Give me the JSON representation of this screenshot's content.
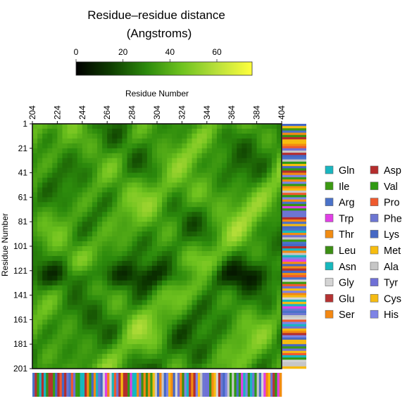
{
  "chart_data": {
    "type": "heatmap",
    "title_line1": "Residue–residue distance",
    "title_line2": "(Angstroms)",
    "colorbar": {
      "ticks": [
        "0",
        "20",
        "40",
        "60"
      ],
      "range": [
        0,
        75
      ],
      "colors": [
        "#000000",
        "#0e3d00",
        "#2c8a0c",
        "#6ec21e",
        "#b9e03a",
        "#ffff3c"
      ]
    },
    "xlabel": "Residue Number",
    "ylabel": "Residue Number",
    "x_ticks": [
      "204",
      "224",
      "244",
      "264",
      "284",
      "304",
      "324",
      "344",
      "364",
      "384",
      "404"
    ],
    "y_ticks": [
      "1",
      "21",
      "41",
      "61",
      "81",
      "101",
      "121",
      "141",
      "161",
      "181",
      "201"
    ],
    "x_range": [
      204,
      404
    ],
    "y_range": [
      1,
      201
    ],
    "value_range": [
      0,
      75
    ],
    "grid": false,
    "legend_position": "right",
    "legend": [
      {
        "name": "Gln",
        "color": "#19b6c0"
      },
      {
        "name": "Asp",
        "color": "#b52d2d"
      },
      {
        "name": "Ile",
        "color": "#3c9a12"
      },
      {
        "name": "Val",
        "color": "#2f9a12"
      },
      {
        "name": "Arg",
        "color": "#4a72c9"
      },
      {
        "name": "Pro",
        "color": "#ef5a2e"
      },
      {
        "name": "Trp",
        "color": "#e13fe6"
      },
      {
        "name": "Phe",
        "color": "#6c76d2"
      },
      {
        "name": "Thr",
        "color": "#f28c12"
      },
      {
        "name": "Lys",
        "color": "#4668c4"
      },
      {
        "name": "Leu",
        "color": "#3c8f14"
      },
      {
        "name": "Met",
        "color": "#f7bd0e"
      },
      {
        "name": "Asn",
        "color": "#16b8bd"
      },
      {
        "name": "Ala",
        "color": "#c6c6c6"
      },
      {
        "name": "Gly",
        "color": "#d4d4d4"
      },
      {
        "name": "Tyr",
        "color": "#6f70d6"
      },
      {
        "name": "Glu",
        "color": "#b53232"
      },
      {
        "name": "Cys",
        "color": "#f5bb12"
      },
      {
        "name": "Ser",
        "color": "#f48812"
      },
      {
        "name": "His",
        "color": "#7e84e6"
      }
    ]
  }
}
